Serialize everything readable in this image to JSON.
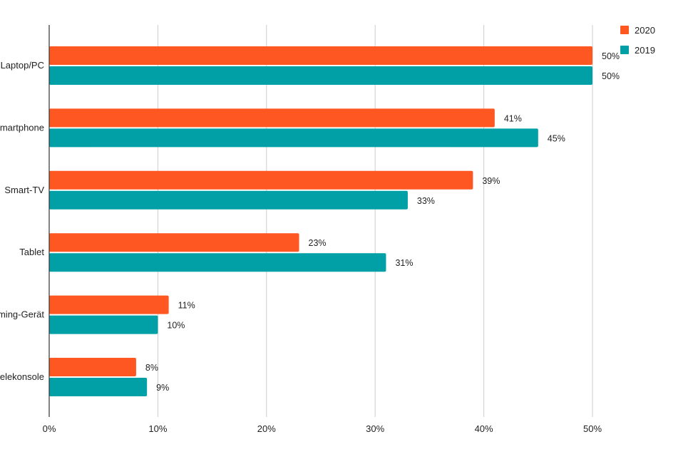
{
  "chart_data": {
    "type": "bar",
    "orientation": "horizontal",
    "categories": [
      "Laptop/PC",
      "Smartphone",
      "Smart-TV",
      "Tablet",
      "Streaming-Gerät",
      "Spielekonsole"
    ],
    "series": [
      {
        "name": "2020",
        "color": "#ff5722",
        "values": [
          50,
          41,
          39,
          23,
          11,
          8
        ]
      },
      {
        "name": "2019",
        "color": "#00a0a6",
        "values": [
          50,
          45,
          33,
          31,
          10,
          9
        ]
      }
    ],
    "x_ticks": [
      0,
      10,
      20,
      30,
      40,
      50
    ],
    "tick_suffix": "%",
    "xlim": [
      0,
      50
    ],
    "grid": true,
    "legend_position": "top-right",
    "data_labels": true,
    "title": "",
    "xlabel": "",
    "ylabel": ""
  }
}
